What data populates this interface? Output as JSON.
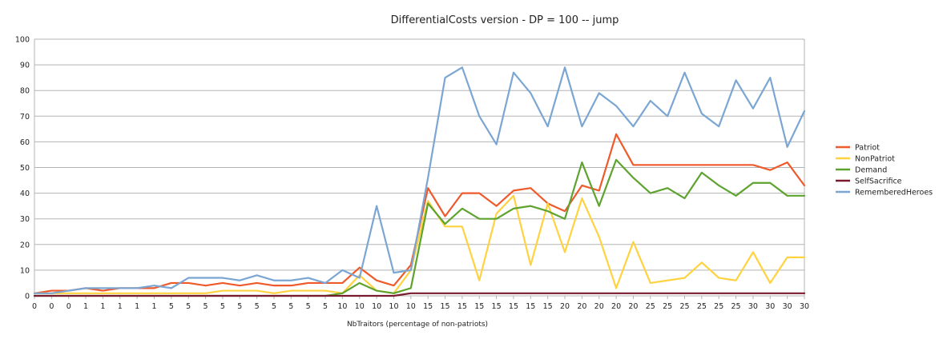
{
  "chart_data": {
    "type": "line",
    "title": "DifferentialCosts version - DP = 100 -- jump",
    "xlabel": "NbTraitors (percentage of non-patriots)",
    "ylabel": "",
    "ylim": [
      0,
      100
    ],
    "yticks": [
      0,
      10,
      20,
      30,
      40,
      50,
      60,
      70,
      80,
      90,
      100
    ],
    "grid": true,
    "legend_position": "right",
    "categories": [
      0,
      0,
      0,
      1,
      1,
      1,
      1,
      1,
      5,
      5,
      5,
      5,
      5,
      5,
      5,
      5,
      5,
      5,
      10,
      10,
      10,
      10,
      10,
      15,
      15,
      15,
      15,
      15,
      15,
      15,
      15,
      20,
      20,
      20,
      20,
      20,
      25,
      25,
      25,
      25,
      25,
      25,
      30,
      30,
      30,
      30
    ],
    "series": [
      {
        "name": "Patriot",
        "color": "#ee5a2c",
        "values": [
          1,
          2,
          2,
          3,
          2,
          3,
          3,
          3,
          5,
          5,
          4,
          5,
          4,
          5,
          4,
          4,
          5,
          5,
          5,
          11,
          6,
          4,
          12,
          42,
          31,
          40,
          40,
          35,
          41,
          42,
          36,
          33,
          43,
          41,
          63,
          51,
          51,
          51,
          51,
          51,
          51,
          51,
          51,
          49,
          52,
          43
        ]
      },
      {
        "name": "NonPatriot",
        "color": "#ffd23f",
        "values": [
          1,
          1,
          1,
          1,
          1,
          1,
          1,
          1,
          1,
          1,
          1,
          2,
          2,
          2,
          1,
          2,
          2,
          2,
          1,
          8,
          2,
          1,
          10,
          37,
          27,
          27,
          6,
          32,
          39,
          12,
          36,
          17,
          38,
          23,
          3,
          21,
          5,
          6,
          7,
          13,
          7,
          6,
          17,
          5,
          15,
          15
        ]
      },
      {
        "name": "Demand",
        "color": "#5ea32f",
        "values": [
          0,
          0,
          0,
          0,
          0,
          0,
          0,
          0,
          0,
          0,
          0,
          0,
          0,
          0,
          0,
          0,
          0,
          0,
          1,
          5,
          2,
          1,
          3,
          36,
          28,
          34,
          30,
          30,
          34,
          35,
          33,
          30,
          52,
          35,
          53,
          46,
          40,
          42,
          38,
          48,
          43,
          39,
          44,
          44,
          39,
          39
        ]
      },
      {
        "name": "SelfSacrifice",
        "color": "#7a1a2e",
        "values": [
          0,
          0,
          0,
          0,
          0,
          0,
          0,
          0,
          0,
          0,
          0,
          0,
          0,
          0,
          0,
          0,
          0,
          0,
          0,
          0,
          0,
          0,
          1,
          1,
          1,
          1,
          1,
          1,
          1,
          1,
          1,
          1,
          1,
          1,
          1,
          1,
          1,
          1,
          1,
          1,
          1,
          1,
          1,
          1,
          1,
          1
        ]
      },
      {
        "name": "RememberedHeroes",
        "color": "#7ba6d3",
        "values": [
          1,
          1,
          2,
          3,
          3,
          3,
          3,
          4,
          3,
          7,
          7,
          7,
          6,
          8,
          6,
          6,
          7,
          5,
          10,
          7,
          35,
          9,
          10,
          46,
          85,
          89,
          70,
          59,
          87,
          79,
          66,
          89,
          66,
          79,
          74,
          66,
          76,
          70,
          87,
          71,
          66,
          84,
          73,
          85,
          58,
          72
        ]
      }
    ]
  }
}
